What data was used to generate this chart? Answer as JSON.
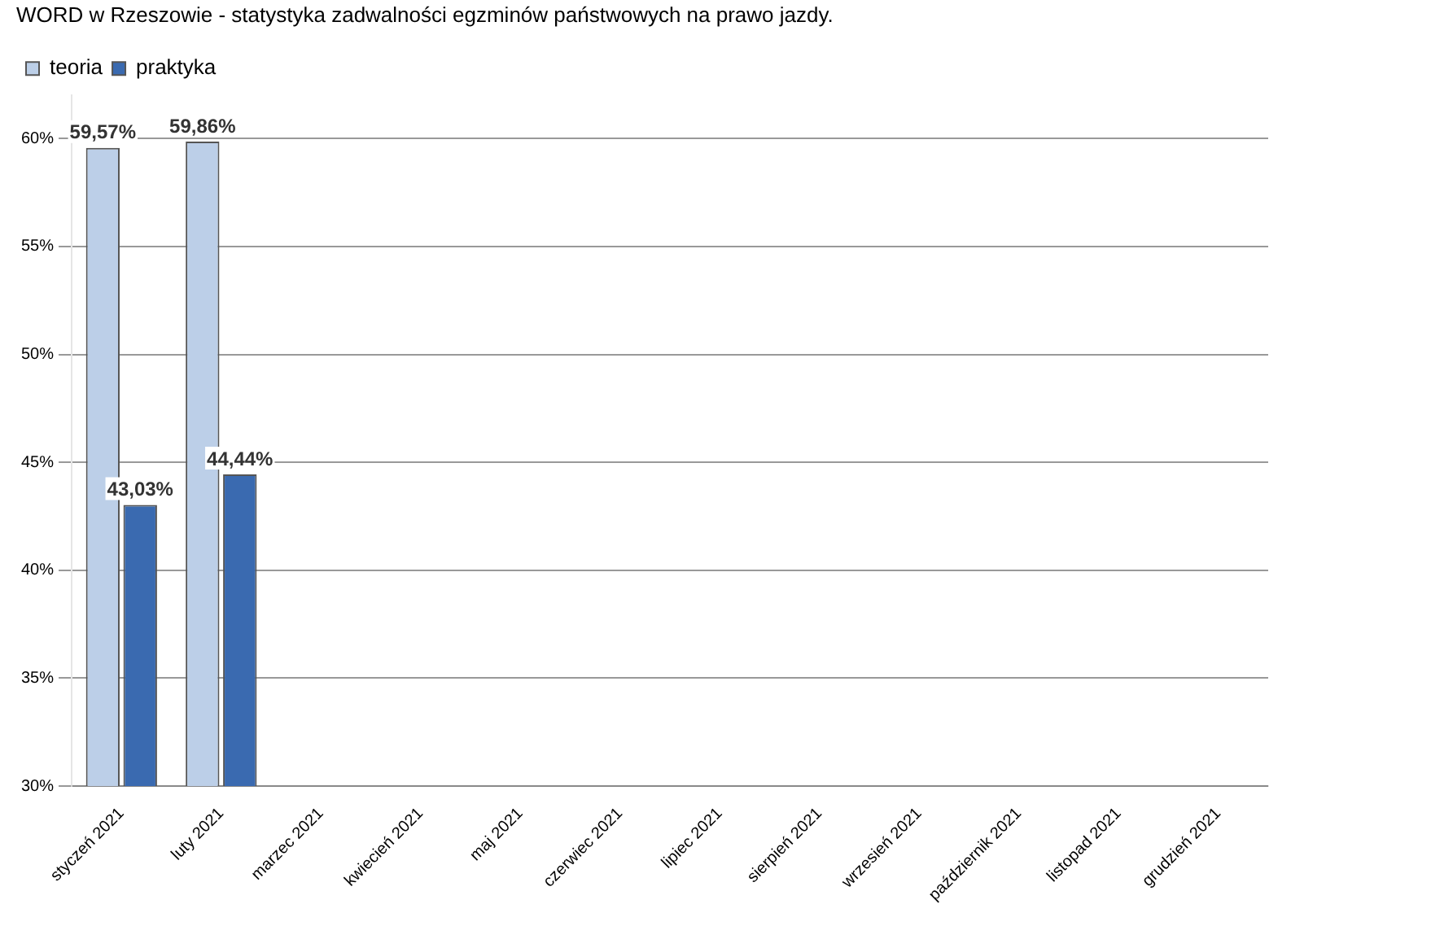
{
  "chart_data": {
    "type": "bar",
    "title": "WORD w Rzeszowie - statystyka zadwalności egzminów państwowych na prawo jazdy.",
    "categories": [
      "styczeń 2021",
      "luty 2021",
      "marzec 2021",
      "kwiecień 2021",
      "maj 2021",
      "czerwiec 2021",
      "lipiec 2021",
      "sierpień 2021",
      "wrzesień 2021",
      "październik 2021",
      "listopad 2021",
      "grudzień 2021"
    ],
    "series": [
      {
        "name": "teoria",
        "color": "#bccfe8",
        "values": [
          59.57,
          59.86,
          null,
          null,
          null,
          null,
          null,
          null,
          null,
          null,
          null,
          null
        ],
        "value_labels": [
          "59,57%",
          "59,86%",
          null,
          null,
          null,
          null,
          null,
          null,
          null,
          null,
          null,
          null
        ]
      },
      {
        "name": "praktyka",
        "color": "#3a6ab0",
        "values": [
          43.03,
          44.44,
          null,
          null,
          null,
          null,
          null,
          null,
          null,
          null,
          null,
          null
        ],
        "value_labels": [
          "43,03%",
          "44,44%",
          null,
          null,
          null,
          null,
          null,
          null,
          null,
          null,
          null,
          null
        ]
      }
    ],
    "ylim": [
      30,
      62
    ],
    "yticks": [
      {
        "value": 30,
        "label": "30%"
      },
      {
        "value": 35,
        "label": "35%"
      },
      {
        "value": 40,
        "label": "40%"
      },
      {
        "value": 45,
        "label": "45%"
      },
      {
        "value": 50,
        "label": "50%"
      },
      {
        "value": 55,
        "label": "55%"
      },
      {
        "value": 60,
        "label": "60%"
      }
    ],
    "grid": "y",
    "legend": "top left"
  }
}
